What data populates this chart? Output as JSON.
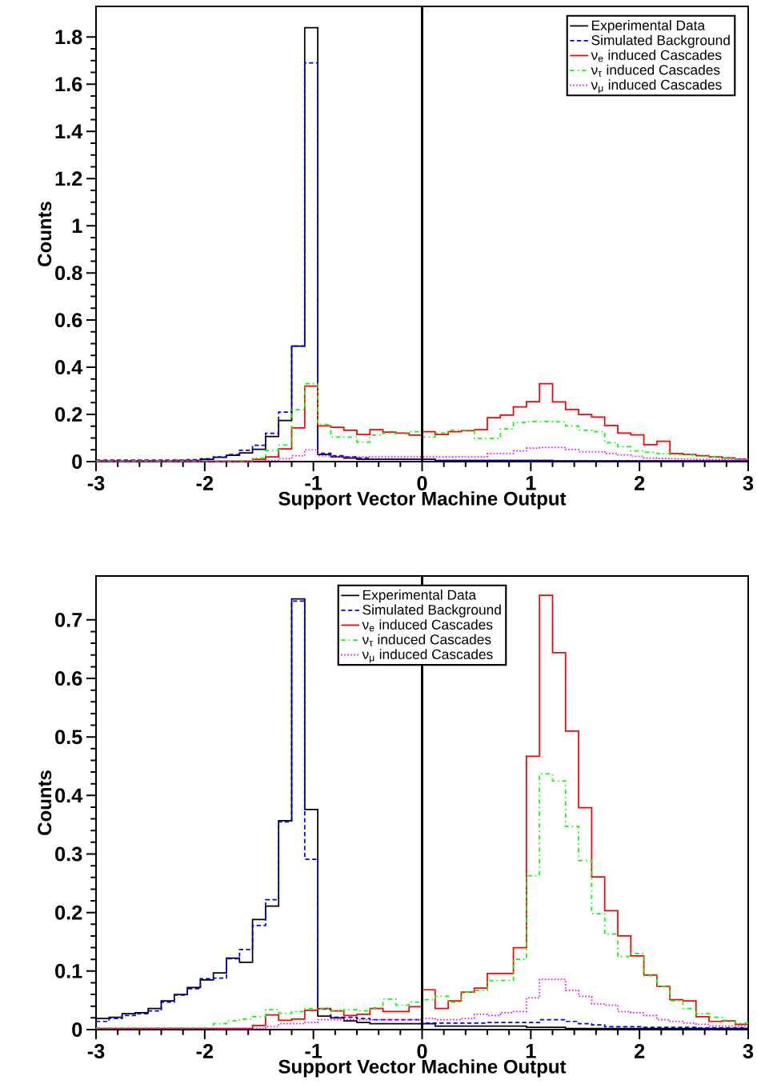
{
  "chart_data": [
    {
      "type": "step",
      "xlabel": "Support Vector Machine Output",
      "ylabel": "Counts",
      "x": [
        -3,
        -2.88,
        -2.76,
        -2.64,
        -2.52,
        -2.4,
        -2.28,
        -2.16,
        -2.04,
        -1.92,
        -1.8,
        -1.68,
        -1.56,
        -1.44,
        -1.32,
        -1.2,
        -1.08,
        -0.96,
        -0.84,
        -0.72,
        -0.6,
        -0.48,
        -0.36,
        -0.24,
        -0.12,
        0,
        0.12,
        0.24,
        0.36,
        0.48,
        0.6,
        0.72,
        0.84,
        0.96,
        1.08,
        1.2,
        1.32,
        1.44,
        1.56,
        1.68,
        1.8,
        1.92,
        2.04,
        2.16,
        2.28,
        2.4,
        2.52,
        2.64,
        2.76,
        2.88,
        3
      ],
      "series": [
        {
          "name": "Experimental Data",
          "color": "#000000",
          "line_style": "solid",
          "values": [
            0.003,
            0.003,
            0.003,
            0.003,
            0.003,
            0.003,
            0.005,
            0.005,
            0.01,
            0.018,
            0.027,
            0.037,
            0.052,
            0.106,
            0.174,
            0.49,
            1.84,
            0.03,
            0.02,
            0.015,
            0.01,
            0.01,
            0.01,
            0.01,
            0.01,
            0.01,
            0.005,
            0.005,
            0.005,
            0.005,
            0.005,
            0.005,
            0.005,
            0.005,
            0.005,
            0.003,
            0.003,
            0.003,
            0.003,
            0.003,
            0.003,
            0.003,
            0.003,
            0.003,
            0.003,
            0.003,
            0.003,
            0.003,
            0.003,
            0.003,
            0.003
          ]
        },
        {
          "name": "Simulated Background",
          "color": "#0000ff",
          "line_style": "dashed",
          "values": [
            0.006,
            0.006,
            0.006,
            0.006,
            0.006,
            0.006,
            0.006,
            0.008,
            0.012,
            0.02,
            0.03,
            0.048,
            0.069,
            0.12,
            0.21,
            0.49,
            1.69,
            0.035,
            0.025,
            0.02,
            0.015,
            0.01,
            0.01,
            0.01,
            0.01,
            0.01,
            0.005,
            0.005,
            0.005,
            0.005,
            0.005,
            0.005,
            0.005,
            0.005,
            0.005,
            0.003,
            0.003,
            0.003,
            0.003,
            0.003,
            0.003,
            0.003,
            0.003,
            0.003,
            0.003,
            0.003,
            0.003,
            0.003,
            0.003,
            0.003,
            0.003
          ]
        },
        {
          "name": "ν$_{e}$ induced Cascades",
          "color": "#ff0000",
          "line_style": "solid",
          "values": [
            0.002,
            0.002,
            0.002,
            0.002,
            0.002,
            0.002,
            0.002,
            0.002,
            0.002,
            0.002,
            0.002,
            0.002,
            0.01,
            0.02,
            0.054,
            0.143,
            0.32,
            0.151,
            0.145,
            0.133,
            0.115,
            0.135,
            0.125,
            0.121,
            0.112,
            0.127,
            0.115,
            0.127,
            0.131,
            0.135,
            0.186,
            0.197,
            0.232,
            0.254,
            0.33,
            0.253,
            0.221,
            0.2,
            0.189,
            0.153,
            0.121,
            0.113,
            0.072,
            0.086,
            0.034,
            0.03,
            0.025,
            0.02,
            0.016,
            0.011,
            0.011
          ]
        },
        {
          "name": "ν$_{τ}$ induced Cascades",
          "color": "#00ff00",
          "line_style": "dashdot",
          "values": [
            0.002,
            0.002,
            0.002,
            0.002,
            0.002,
            0.002,
            0.002,
            0.002,
            0.002,
            0.002,
            0.002,
            0.002,
            0.015,
            0.047,
            0.07,
            0.22,
            0.33,
            0.157,
            0.104,
            0.104,
            0.083,
            0.112,
            0.121,
            0.118,
            0.127,
            0.104,
            0.121,
            0.133,
            0.133,
            0.098,
            0.098,
            0.139,
            0.166,
            0.17,
            0.17,
            0.168,
            0.151,
            0.133,
            0.127,
            0.08,
            0.063,
            0.045,
            0.039,
            0.034,
            0.03,
            0.028,
            0.022,
            0.019,
            0.014,
            0.011,
            0.011
          ]
        },
        {
          "name": "ν$_{μ}$ induced Cascades",
          "color": "#ff00ff",
          "line_style": "dotted",
          "values": [
            0.001,
            0.001,
            0.001,
            0.001,
            0.001,
            0.001,
            0.001,
            0.001,
            0.001,
            0.001,
            0.001,
            0.001,
            0.003,
            0.005,
            0.012,
            0.025,
            0.05,
            0.025,
            0.02,
            0.02,
            0.02,
            0.02,
            0.02,
            0.02,
            0.02,
            0.02,
            0.02,
            0.02,
            0.02,
            0.02,
            0.034,
            0.034,
            0.045,
            0.057,
            0.06,
            0.06,
            0.051,
            0.042,
            0.042,
            0.034,
            0.028,
            0.022,
            0.015,
            0.013,
            0.012,
            0.011,
            0.01,
            0.009,
            0.008,
            0.008,
            0.008
          ]
        }
      ],
      "xlim": [
        -3,
        3
      ],
      "ylim": [
        0,
        1.93
      ],
      "xticks": [
        -3,
        -2,
        -1,
        0,
        1,
        2,
        3
      ],
      "yticks": [
        0,
        0.2,
        0.4,
        0.6,
        0.8,
        1,
        1.2,
        1.4,
        1.6,
        1.8
      ],
      "legend": "top right",
      "ref_lines": [
        {
          "axis": "x",
          "value": 0,
          "color": "#000000"
        }
      ]
    },
    {
      "type": "step",
      "xlabel": "Support Vector Machine Output",
      "ylabel": "Counts",
      "x": [
        -3,
        -2.88,
        -2.76,
        -2.64,
        -2.52,
        -2.4,
        -2.28,
        -2.16,
        -2.04,
        -1.92,
        -1.8,
        -1.68,
        -1.56,
        -1.44,
        -1.32,
        -1.2,
        -1.08,
        -0.96,
        -0.84,
        -0.72,
        -0.6,
        -0.48,
        -0.36,
        -0.24,
        -0.12,
        0,
        0.12,
        0.24,
        0.36,
        0.48,
        0.6,
        0.72,
        0.84,
        0.96,
        1.08,
        1.2,
        1.32,
        1.44,
        1.56,
        1.68,
        1.8,
        1.92,
        2.04,
        2.16,
        2.28,
        2.4,
        2.52,
        2.64,
        2.76,
        2.88,
        3
      ],
      "series": [
        {
          "name": "Experimental Data",
          "color": "#000000",
          "line_style": "solid",
          "values": [
            0.019,
            0.021,
            0.027,
            0.029,
            0.036,
            0.049,
            0.06,
            0.072,
            0.085,
            0.097,
            0.122,
            0.115,
            0.188,
            0.211,
            0.357,
            0.736,
            0.376,
            0.023,
            0.02,
            0.015,
            0.012,
            0.01,
            0.01,
            0.01,
            0.01,
            0.01,
            0.006,
            0.006,
            0.006,
            0.006,
            0.006,
            0.006,
            0.006,
            0.004,
            0.004,
            0.004,
            0.002,
            0.002,
            0.002,
            0.002,
            0.002,
            0.002,
            0.002,
            0.002,
            0.002,
            0.002,
            0.002,
            0.002,
            0.002,
            0.002,
            0.002
          ]
        },
        {
          "name": "Simulated Background",
          "color": "#0000ff",
          "line_style": "dashed",
          "values": [
            0.014,
            0.019,
            0.024,
            0.027,
            0.032,
            0.047,
            0.059,
            0.07,
            0.087,
            0.088,
            0.121,
            0.137,
            0.178,
            0.222,
            0.355,
            0.732,
            0.291,
            0.035,
            0.021,
            0.021,
            0.019,
            0.017,
            0.017,
            0.017,
            0.017,
            0.011,
            0.011,
            0.011,
            0.011,
            0.011,
            0.012,
            0.012,
            0.012,
            0.012,
            0.017,
            0.017,
            0.014,
            0.01,
            0.008,
            0.005,
            0.005,
            0.005,
            0.004,
            0.004,
            0.004,
            0.004,
            0.003,
            0.003,
            0.003,
            0.003,
            0.003
          ]
        },
        {
          "name": "ν$_{e}$ induced Cascades",
          "color": "#ff0000",
          "line_style": "solid",
          "values": [
            0.002,
            0.002,
            0.002,
            0.002,
            0.002,
            0.002,
            0.002,
            0.002,
            0.002,
            0.002,
            0.002,
            0.002,
            0.007,
            0.025,
            0.016,
            0.018,
            0.033,
            0.036,
            0.032,
            0.024,
            0.026,
            0.036,
            0.031,
            0.031,
            0.039,
            0.068,
            0.036,
            0.049,
            0.064,
            0.071,
            0.096,
            0.096,
            0.14,
            0.467,
            0.742,
            0.644,
            0.51,
            0.379,
            0.261,
            0.203,
            0.16,
            0.126,
            0.093,
            0.074,
            0.051,
            0.049,
            0.022,
            0.014,
            0.015,
            0.009,
            0.009
          ]
        },
        {
          "name": "ν$_{τ}$ induced Cascades",
          "color": "#00ff00",
          "line_style": "dashdot",
          "values": [
            0.003,
            0.003,
            0.003,
            0.003,
            0.003,
            0.003,
            0.003,
            0.003,
            0.003,
            0.01,
            0.015,
            0.018,
            0.022,
            0.034,
            0.028,
            0.031,
            0.036,
            0.036,
            0.032,
            0.034,
            0.032,
            0.037,
            0.052,
            0.042,
            0.047,
            0.051,
            0.057,
            0.047,
            0.064,
            0.067,
            0.084,
            0.084,
            0.12,
            0.263,
            0.437,
            0.425,
            0.347,
            0.289,
            0.198,
            0.163,
            0.125,
            0.13,
            0.092,
            0.074,
            0.049,
            0.036,
            0.027,
            0.021,
            0.016,
            0.011,
            0.011
          ]
        },
        {
          "name": "ν$_{μ}$ induced Cascades",
          "color": "#ff00ff",
          "line_style": "dotted",
          "values": [
            0.002,
            0.002,
            0.002,
            0.002,
            0.002,
            0.002,
            0.002,
            0.002,
            0.002,
            0.002,
            0.002,
            0.002,
            0.002,
            0.005,
            0.01,
            0.01,
            0.012,
            0.017,
            0.017,
            0.017,
            0.017,
            0.017,
            0.017,
            0.017,
            0.017,
            0.019,
            0.017,
            0.017,
            0.019,
            0.026,
            0.024,
            0.029,
            0.031,
            0.054,
            0.086,
            0.086,
            0.067,
            0.057,
            0.044,
            0.042,
            0.031,
            0.029,
            0.024,
            0.017,
            0.014,
            0.011,
            0.009,
            0.006,
            0.006,
            0.006,
            0.006
          ]
        }
      ],
      "xlim": [
        -3,
        3
      ],
      "ylim": [
        0,
        0.775
      ],
      "xticks": [
        -3,
        -2,
        -1,
        0,
        1,
        2,
        3
      ],
      "yticks": [
        0,
        0.1,
        0.2,
        0.3,
        0.4,
        0.5,
        0.6,
        0.7
      ],
      "legend": "top",
      "ref_lines": [
        {
          "axis": "x",
          "value": 0,
          "color": "#000000"
        }
      ]
    }
  ]
}
